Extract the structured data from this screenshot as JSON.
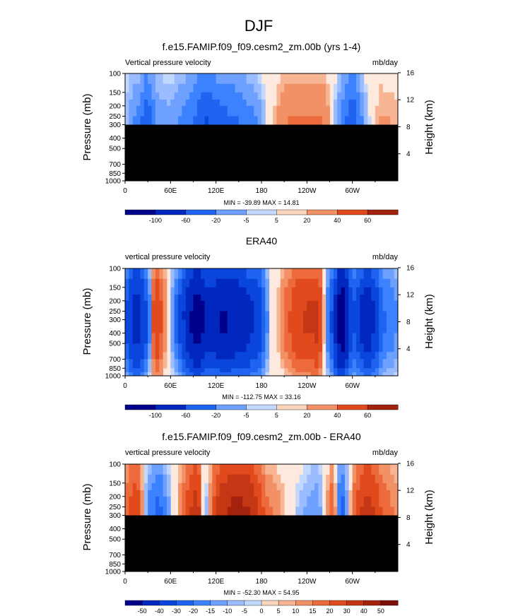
{
  "figure": {
    "title": "DJF"
  },
  "colors": {
    "neg": [
      "#00008b",
      "#0028be",
      "#0a46dc",
      "#1e64f0",
      "#3c82ff",
      "#6ea0ff",
      "#9bbcff",
      "#c3d8ff",
      "#deebff"
    ],
    "zero": "#fde9dd",
    "pos": [
      "#fbd5be",
      "#f8b594",
      "#f29066",
      "#ec6a3c",
      "#e04a1c",
      "#c53614",
      "#a3220e",
      "#7d0f08"
    ]
  },
  "chart_data": [
    {
      "type": "heatmap",
      "title": "f.e15.FAMIP.f09_f09.cesm2_zm.00b (yrs 1-4)",
      "left_label": "Vertical pressure velocity",
      "right_label": "mb/day",
      "ylabel": "Pressure (mb)",
      "y2label": "Height (km)",
      "xlim": [
        0,
        360
      ],
      "yticks": [
        "100",
        "150",
        "200",
        "250",
        "300",
        "400",
        "500",
        "700",
        "850",
        "1000"
      ],
      "y2ticks": [
        "16",
        "12",
        "8",
        "4"
      ],
      "xticks": [
        "0",
        "60E",
        "120E",
        "180",
        "120W",
        "60W"
      ],
      "stats": "MIN = -39.89  MAX =  14.81",
      "data_top_mb": 300,
      "colorbar": {
        "labels": [
          "-100",
          "-60",
          "-20",
          "-5",
          "5",
          "20",
          "40",
          "60"
        ]
      },
      "field_profile": [
        {
          "lon": 0,
          "v": -4
        },
        {
          "lon": 20,
          "v": -12
        },
        {
          "lon": 30,
          "v": -22
        },
        {
          "lon": 40,
          "v": -8
        },
        {
          "lon": 60,
          "v": -6
        },
        {
          "lon": 90,
          "v": -14
        },
        {
          "lon": 105,
          "v": -26
        },
        {
          "lon": 125,
          "v": -18
        },
        {
          "lon": 150,
          "v": -14
        },
        {
          "lon": 175,
          "v": -8
        },
        {
          "lon": 195,
          "v": 2
        },
        {
          "lon": 210,
          "v": 6
        },
        {
          "lon": 240,
          "v": 7
        },
        {
          "lon": 265,
          "v": 6
        },
        {
          "lon": 285,
          "v": -10
        },
        {
          "lon": 300,
          "v": -22
        },
        {
          "lon": 315,
          "v": -6
        },
        {
          "lon": 335,
          "v": 4
        },
        {
          "lon": 360,
          "v": 3
        }
      ]
    },
    {
      "type": "heatmap",
      "title": "ERA40",
      "left_label": "vertical pressure velocity",
      "right_label": "mb/day",
      "ylabel": "Pressure (mb)",
      "y2label": "Height (km)",
      "xlim": [
        0,
        360
      ],
      "yticks": [
        "100",
        "150",
        "200",
        "250",
        "300",
        "400",
        "500",
        "700",
        "850",
        "1000"
      ],
      "y2ticks": [
        "16",
        "12",
        "8",
        "4"
      ],
      "xticks": [
        "0",
        "60E",
        "120E",
        "180",
        "120W",
        "60W"
      ],
      "stats": "MIN = -112.75  MAX =  33.16",
      "data_top_mb": 1000,
      "colorbar": {
        "labels": [
          "-100",
          "-60",
          "-20",
          "-5",
          "5",
          "20",
          "40",
          "60"
        ]
      },
      "field_profile": [
        {
          "lon": 0,
          "v": -20
        },
        {
          "lon": 15,
          "v": -55
        },
        {
          "lon": 30,
          "v": -20
        },
        {
          "lon": 40,
          "v": 22
        },
        {
          "lon": 50,
          "v": 8
        },
        {
          "lon": 65,
          "v": -10
        },
        {
          "lon": 80,
          "v": -45
        },
        {
          "lon": 95,
          "v": -90
        },
        {
          "lon": 110,
          "v": -50
        },
        {
          "lon": 130,
          "v": -70
        },
        {
          "lon": 155,
          "v": -55
        },
        {
          "lon": 175,
          "v": -35
        },
        {
          "lon": 190,
          "v": -3
        },
        {
          "lon": 205,
          "v": 4
        },
        {
          "lon": 230,
          "v": 18
        },
        {
          "lon": 255,
          "v": 22
        },
        {
          "lon": 275,
          "v": -30
        },
        {
          "lon": 285,
          "v": -100
        },
        {
          "lon": 300,
          "v": -20
        },
        {
          "lon": 320,
          "v": -60
        },
        {
          "lon": 340,
          "v": -15
        },
        {
          "lon": 360,
          "v": -8
        }
      ]
    },
    {
      "type": "heatmap",
      "title": "f.e15.FAMIP.f09_f09.cesm2_zm.00b - ERA40",
      "left_label": "vertical pressure velocity",
      "right_label": "mb/day",
      "ylabel": "Pressure (mb)",
      "y2label": "Height (km)",
      "xlim": [
        0,
        360
      ],
      "yticks": [
        "100",
        "150",
        "200",
        "250",
        "300",
        "400",
        "500",
        "700",
        "850",
        "1000"
      ],
      "y2ticks": [
        "16",
        "12",
        "8",
        "4"
      ],
      "xticks": [
        "0",
        "60E",
        "120E",
        "180",
        "120W",
        "60W"
      ],
      "stats": "MIN = -52.30  MAX =  54.95",
      "data_top_mb": 300,
      "colorbar": {
        "labels": [
          "-50",
          "-40",
          "-30",
          "-20",
          "-15",
          "-10",
          "-5",
          "0",
          "5",
          "10",
          "15",
          "20",
          "30",
          "40",
          "50"
        ]
      },
      "field_profile": [
        {
          "lon": 0,
          "v": 8
        },
        {
          "lon": 15,
          "v": 20
        },
        {
          "lon": 30,
          "v": -10
        },
        {
          "lon": 45,
          "v": -18
        },
        {
          "lon": 60,
          "v": -4
        },
        {
          "lon": 80,
          "v": 12
        },
        {
          "lon": 95,
          "v": 30
        },
        {
          "lon": 105,
          "v": -8
        },
        {
          "lon": 125,
          "v": 28
        },
        {
          "lon": 145,
          "v": 45
        },
        {
          "lon": 165,
          "v": 35
        },
        {
          "lon": 185,
          "v": 8
        },
        {
          "lon": 205,
          "v": 4
        },
        {
          "lon": 230,
          "v": -4
        },
        {
          "lon": 255,
          "v": -8
        },
        {
          "lon": 275,
          "v": 12
        },
        {
          "lon": 285,
          "v": -22
        },
        {
          "lon": 300,
          "v": 8
        },
        {
          "lon": 320,
          "v": 28
        },
        {
          "lon": 340,
          "v": 10
        },
        {
          "lon": 360,
          "v": 5
        }
      ]
    }
  ]
}
